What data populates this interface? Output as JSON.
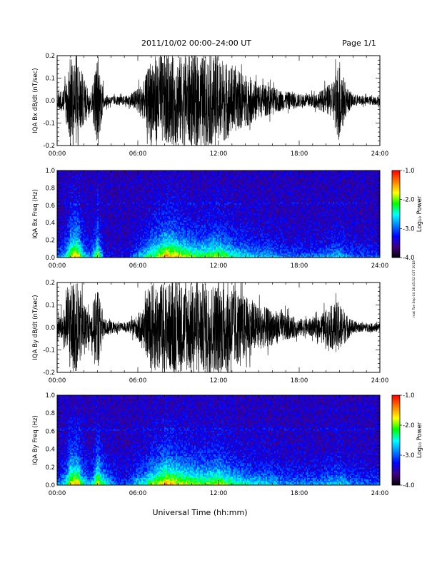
{
  "header": {
    "title": "2011/10/02   00:00–24:00 UT",
    "page": "Page 1/1"
  },
  "footer": {
    "xlabel": "Universal Time (hh:mm)",
    "side_stamp": "mat Tue Sep 04 16:45:52 CST 2018"
  },
  "colorbar": {
    "label": "Log₁₀ Power",
    "ticks": [
      "-1.0",
      "-2.0",
      "-3.0",
      "-4.0"
    ],
    "colors": [
      "#ff0000",
      "#ff8000",
      "#ffff00",
      "#00ff00",
      "#00ffff",
      "#0080ff",
      "#0000ff",
      "#400080",
      "#000000"
    ]
  },
  "chart_data": [
    {
      "type": "line",
      "ylabel": "IQA Bx dB/dt (nT/sec)",
      "xlim": [
        0,
        24
      ],
      "ylim": [
        -0.2,
        0.2
      ],
      "xticks": [
        "00:00",
        "06:00",
        "12:00",
        "18:00",
        "24:00"
      ],
      "yticks": [
        "0.2",
        "0.1",
        "0.0",
        "-0.1",
        "-0.2"
      ],
      "envelope": {
        "hour": [
          0,
          0.5,
          1,
          1.5,
          2,
          2.5,
          3,
          3.5,
          4,
          4.5,
          5,
          5.5,
          6,
          6.5,
          7,
          7.5,
          8,
          8.5,
          9,
          9.5,
          10,
          10.5,
          11,
          11.5,
          12,
          12.5,
          13,
          13.5,
          14,
          14.5,
          15,
          15.5,
          16,
          16.5,
          17,
          17.5,
          18,
          18.5,
          19,
          19.5,
          20,
          20.5,
          21,
          21.5,
          22,
          22.5,
          23,
          23.5,
          24
        ],
        "amplitude": [
          0.03,
          0.06,
          0.2,
          0.2,
          0.1,
          0.04,
          0.2,
          0.03,
          0.02,
          0.02,
          0.02,
          0.03,
          0.06,
          0.09,
          0.2,
          0.2,
          0.2,
          0.2,
          0.2,
          0.2,
          0.2,
          0.2,
          0.2,
          0.2,
          0.2,
          0.18,
          0.15,
          0.13,
          0.12,
          0.1,
          0.08,
          0.07,
          0.06,
          0.05,
          0.04,
          0.04,
          0.03,
          0.03,
          0.03,
          0.04,
          0.06,
          0.08,
          0.2,
          0.06,
          0.03,
          0.02,
          0.02,
          0.02,
          0.02
        ]
      }
    },
    {
      "type": "heatmap",
      "ylabel": "IQA Bx Freq (Hz)",
      "xlim": [
        0,
        24
      ],
      "ylim": [
        0,
        1.0
      ],
      "zlim": [
        -4.0,
        -1.0
      ],
      "xticks": [
        "00:00",
        "06:00",
        "12:00",
        "18:00",
        "24:00"
      ],
      "yticks": [
        "1.0",
        "0.8",
        "0.6",
        "0.4",
        "0.2",
        "0.0"
      ],
      "activity": {
        "hour": [
          0,
          0.5,
          1,
          1.5,
          2,
          2.5,
          3,
          3.5,
          4,
          4.5,
          5,
          5.5,
          6,
          6.5,
          7,
          7.5,
          8,
          8.5,
          9,
          9.5,
          10,
          10.5,
          11,
          11.5,
          12,
          12.5,
          13,
          13.5,
          14,
          14.5,
          15,
          15.5,
          16,
          16.5,
          17,
          17.5,
          18,
          18.5,
          19,
          19.5,
          20,
          20.5,
          21,
          21.5,
          22,
          22.5,
          23,
          23.5,
          24
        ],
        "level": [
          0.3,
          0.4,
          0.8,
          0.9,
          0.5,
          0.3,
          0.8,
          0.2,
          0.1,
          0.1,
          0.1,
          0.2,
          0.4,
          0.5,
          0.7,
          0.8,
          1.0,
          1.0,
          0.9,
          0.8,
          0.75,
          0.7,
          0.7,
          0.75,
          0.8,
          0.7,
          0.6,
          0.55,
          0.5,
          0.45,
          0.4,
          0.45,
          0.4,
          0.35,
          0.3,
          0.3,
          0.3,
          0.3,
          0.3,
          0.3,
          0.35,
          0.4,
          0.45,
          0.35,
          0.3,
          0.25,
          0.25,
          0.25,
          0.2
        ]
      }
    },
    {
      "type": "line",
      "ylabel": "IQA By dB/dt (nT/sec)",
      "xlim": [
        0,
        24
      ],
      "ylim": [
        -0.2,
        0.2
      ],
      "xticks": [
        "00:00",
        "06:00",
        "12:00",
        "18:00",
        "24:00"
      ],
      "yticks": [
        "0.2",
        "0.1",
        "0.0",
        "-0.1",
        "-0.2"
      ],
      "envelope": {
        "hour": [
          0,
          0.5,
          1,
          1.5,
          2,
          2.5,
          3,
          3.5,
          4,
          4.5,
          5,
          5.5,
          6,
          6.5,
          7,
          7.5,
          8,
          8.5,
          9,
          9.5,
          10,
          10.5,
          11,
          11.5,
          12,
          12.5,
          13,
          13.5,
          14,
          14.5,
          15,
          15.5,
          16,
          16.5,
          17,
          17.5,
          18,
          18.5,
          19,
          19.5,
          20,
          20.5,
          21,
          21.5,
          22,
          22.5,
          23,
          23.5,
          24
        ],
        "amplitude": [
          0.04,
          0.08,
          0.2,
          0.2,
          0.12,
          0.05,
          0.2,
          0.04,
          0.03,
          0.02,
          0.02,
          0.03,
          0.06,
          0.1,
          0.2,
          0.2,
          0.2,
          0.2,
          0.2,
          0.2,
          0.2,
          0.2,
          0.2,
          0.2,
          0.2,
          0.2,
          0.2,
          0.16,
          0.14,
          0.12,
          0.1,
          0.09,
          0.08,
          0.07,
          0.06,
          0.05,
          0.04,
          0.04,
          0.04,
          0.05,
          0.08,
          0.1,
          0.12,
          0.06,
          0.03,
          0.02,
          0.02,
          0.02,
          0.02
        ]
      }
    },
    {
      "type": "heatmap",
      "ylabel": "IQA By Freq (Hz)",
      "xlim": [
        0,
        24
      ],
      "ylim": [
        0,
        1.0
      ],
      "zlim": [
        -4.0,
        -1.0
      ],
      "xticks": [
        "00:00",
        "06:00",
        "12:00",
        "18:00",
        "24:00"
      ],
      "yticks": [
        "1.0",
        "0.8",
        "0.6",
        "0.4",
        "0.2",
        "0.0"
      ],
      "activity": {
        "hour": [
          0,
          0.5,
          1,
          1.5,
          2,
          2.5,
          3,
          3.5,
          4,
          4.5,
          5,
          5.5,
          6,
          6.5,
          7,
          7.5,
          8,
          8.5,
          9,
          9.5,
          10,
          10.5,
          11,
          11.5,
          12,
          12.5,
          13,
          13.5,
          14,
          14.5,
          15,
          15.5,
          16,
          16.5,
          17,
          17.5,
          18,
          18.5,
          19,
          19.5,
          20,
          20.5,
          21,
          21.5,
          22,
          22.5,
          23,
          23.5,
          24
        ],
        "level": [
          0.35,
          0.45,
          0.85,
          0.9,
          0.55,
          0.35,
          0.85,
          0.6,
          0.4,
          0.25,
          0.2,
          0.3,
          0.5,
          0.55,
          0.75,
          0.85,
          1.0,
          1.0,
          0.9,
          0.85,
          0.8,
          0.75,
          0.75,
          0.8,
          0.85,
          0.75,
          0.65,
          0.6,
          0.55,
          0.5,
          0.45,
          0.5,
          0.45,
          0.4,
          0.35,
          0.35,
          0.35,
          0.35,
          0.35,
          0.35,
          0.4,
          0.45,
          0.5,
          0.4,
          0.35,
          0.3,
          0.3,
          0.3,
          0.25
        ]
      }
    }
  ]
}
